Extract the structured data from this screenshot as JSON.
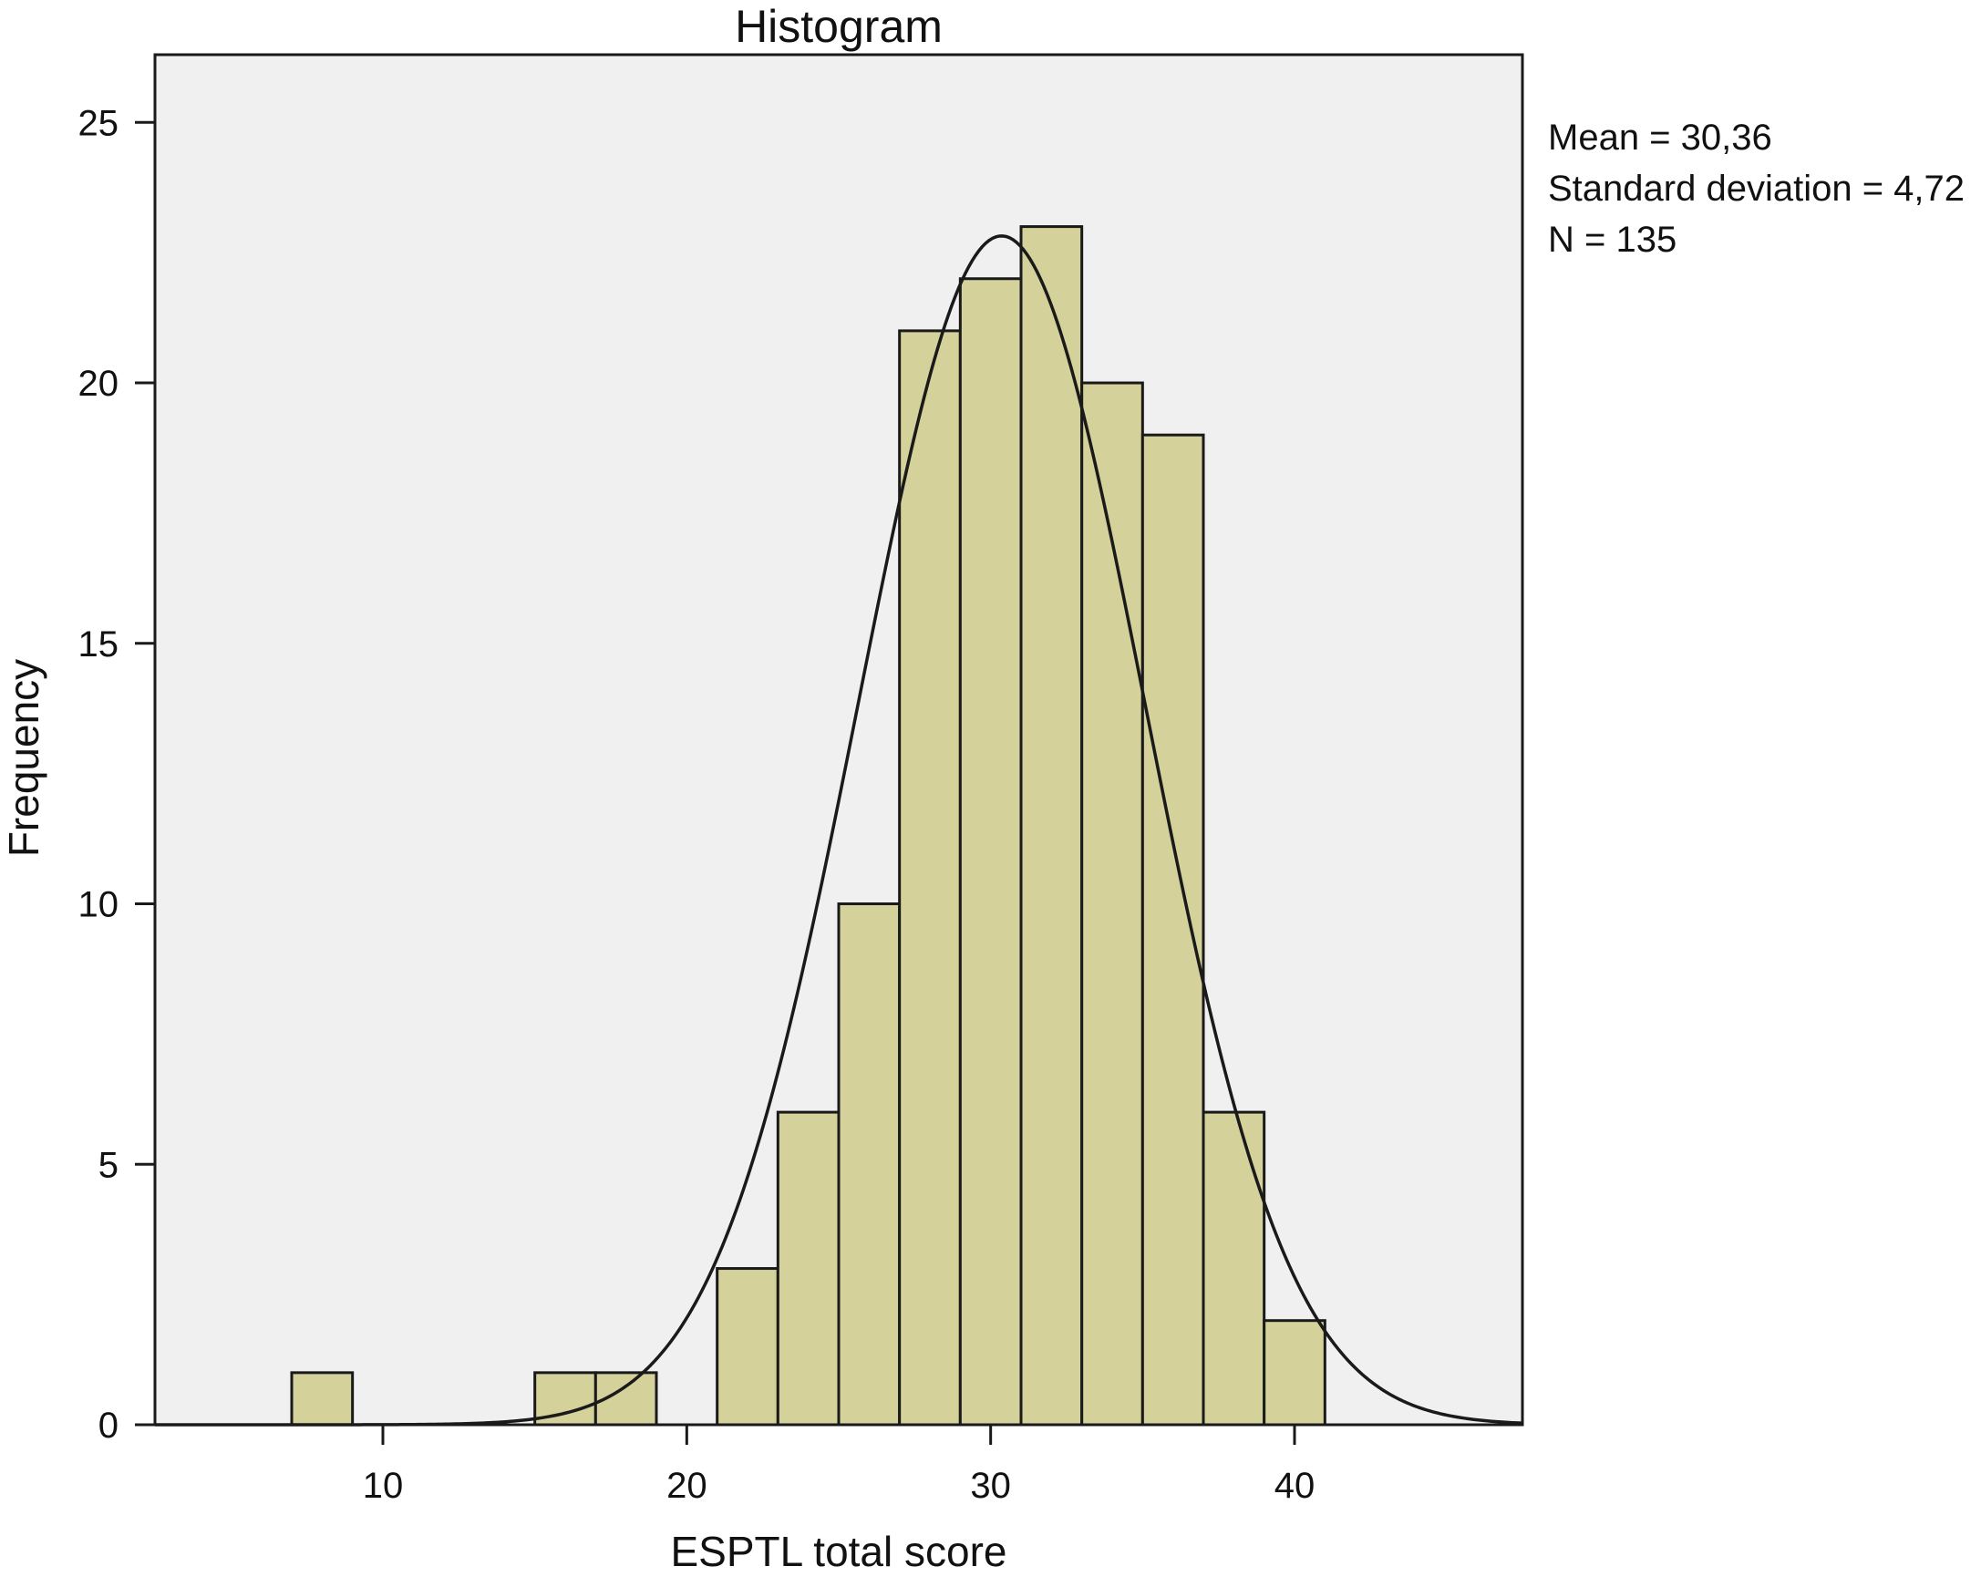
{
  "chart_data": {
    "type": "bar",
    "title": "Histogram",
    "xlabel": "ESPTL total score",
    "ylabel": "Frequency",
    "xlim": [
      2.5,
      47.5
    ],
    "ylim": [
      0,
      26.3
    ],
    "x_ticks": [
      10,
      20,
      30,
      40
    ],
    "y_ticks": [
      0,
      5,
      10,
      15,
      20,
      25
    ],
    "bin_width": 2,
    "bins": [
      {
        "start": 7,
        "end": 9,
        "value": 1
      },
      {
        "start": 15,
        "end": 17,
        "value": 1
      },
      {
        "start": 17,
        "end": 19,
        "value": 1
      },
      {
        "start": 21,
        "end": 23,
        "value": 3
      },
      {
        "start": 23,
        "end": 25,
        "value": 6
      },
      {
        "start": 25,
        "end": 27,
        "value": 10
      },
      {
        "start": 27,
        "end": 29,
        "value": 21
      },
      {
        "start": 29,
        "end": 31,
        "value": 22
      },
      {
        "start": 31,
        "end": 33,
        "value": 23
      },
      {
        "start": 33,
        "end": 35,
        "value": 20
      },
      {
        "start": 35,
        "end": 37,
        "value": 19
      },
      {
        "start": 37,
        "end": 39,
        "value": 6
      },
      {
        "start": 39,
        "end": 41,
        "value": 2
      }
    ],
    "normal_curve": {
      "mean": 30.36,
      "sd": 4.72,
      "n": 135,
      "bin_width": 2
    },
    "grid": false,
    "colors": {
      "plot_background": "#f0f0f0",
      "bar_fill": "#d4d19a",
      "bar_stroke": "#1a1a1a",
      "curve": "#1a1a1a"
    }
  },
  "stats": {
    "mean": "Mean  = 30,36",
    "sd": "Standard deviation = 4,72",
    "n": "N = 135"
  }
}
